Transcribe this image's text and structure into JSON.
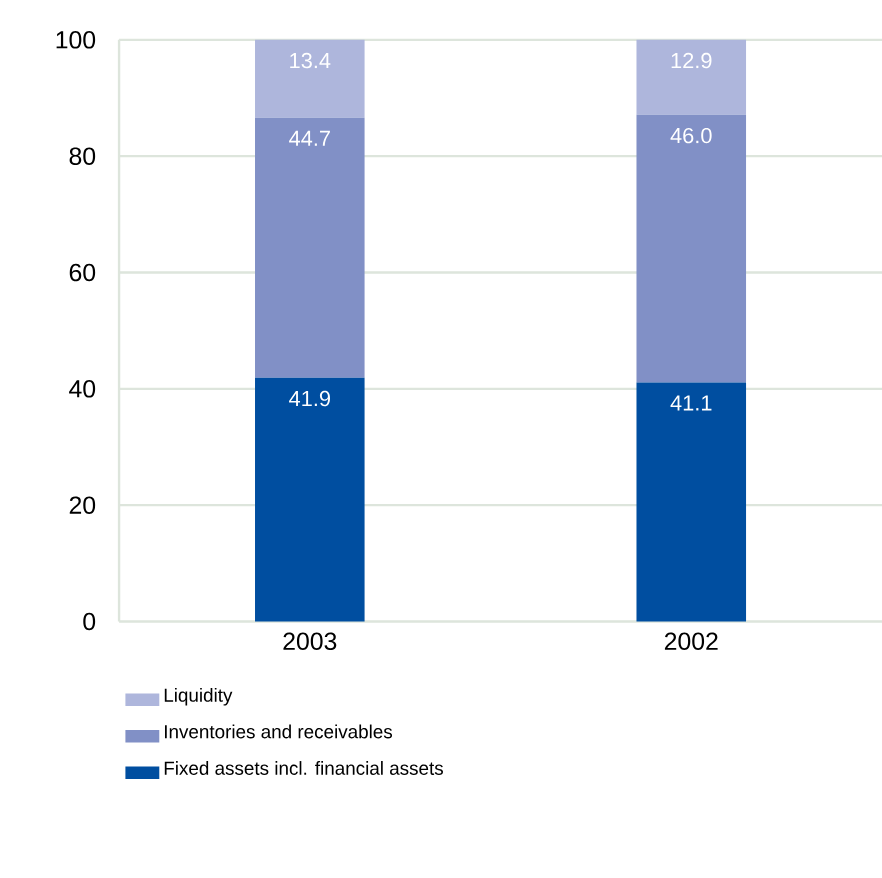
{
  "chart_data": {
    "type": "bar",
    "stacked": true,
    "categories": [
      "2003",
      "2002"
    ],
    "series": [
      {
        "name": "Fixed assets incl. financial assets",
        "color": "#004ea0",
        "values": [
          41.9,
          41.1
        ],
        "value_labels": [
          "41.9",
          "41.1"
        ]
      },
      {
        "name": "Inventories and receivables",
        "color": "#8190c6",
        "values": [
          44.7,
          46.0
        ],
        "value_labels": [
          "44.7",
          "46.0"
        ]
      },
      {
        "name": "Liquidity",
        "color": "#aeb6dc",
        "values": [
          13.4,
          12.9
        ],
        "value_labels": [
          "13.4",
          "12.9"
        ]
      }
    ],
    "ylim": [
      0,
      100
    ],
    "yticks": [
      0,
      20,
      40,
      60,
      80,
      100
    ],
    "grid": "y",
    "legend": "bottom left"
  }
}
